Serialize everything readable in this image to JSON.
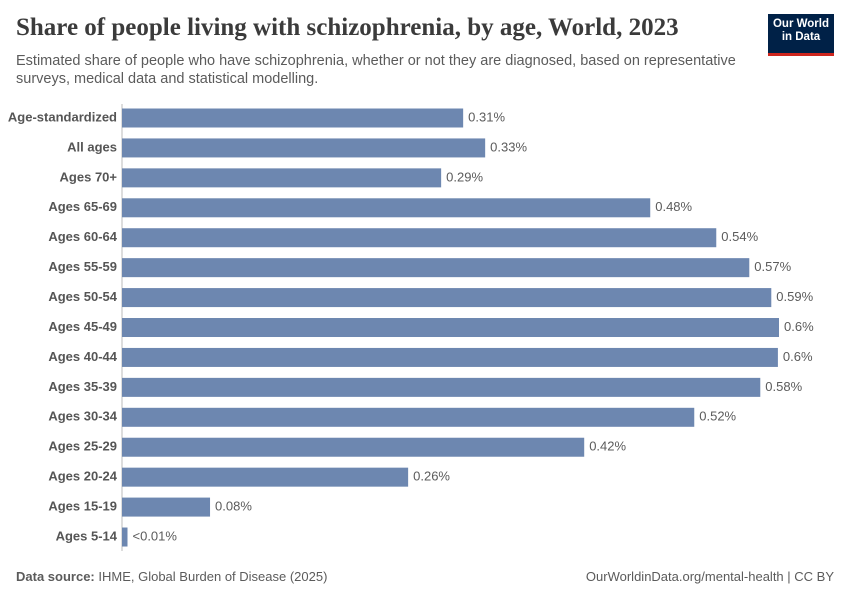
{
  "chart_data": {
    "type": "bar",
    "orientation": "horizontal",
    "title": "Share of people living with schizophrenia, by age, World, 2023",
    "subtitle": "Estimated share of people who have schizophrenia, whether or not they are diagnosed, based on representative surveys, medical data and statistical modelling.",
    "logo": [
      "Our World",
      "in Data"
    ],
    "categories": [
      "Age-standardized",
      "All ages",
      "Ages 70+",
      "Ages 65-69",
      "Ages 60-64",
      "Ages 55-59",
      "Ages 50-54",
      "Ages 45-49",
      "Ages 40-44",
      "Ages 35-39",
      "Ages 30-34",
      "Ages 25-29",
      "Ages 20-24",
      "Ages 15-19",
      "Ages 5-14"
    ],
    "values": [
      0.31,
      0.33,
      0.29,
      0.48,
      0.54,
      0.57,
      0.59,
      0.597,
      0.596,
      0.58,
      0.52,
      0.42,
      0.26,
      0.08,
      0.005
    ],
    "value_labels": [
      "0.31%",
      "0.33%",
      "0.29%",
      "0.48%",
      "0.54%",
      "0.57%",
      "0.59%",
      "0.6%",
      "0.6%",
      "0.58%",
      "0.52%",
      "0.42%",
      "0.26%",
      "0.08%",
      "<0.01%"
    ],
    "color": "#6d87b0",
    "source_label": "Data source:",
    "source": "IHME, Global Burden of Disease (2025)",
    "url": "OurWorldinData.org/mental-health | CC BY"
  }
}
